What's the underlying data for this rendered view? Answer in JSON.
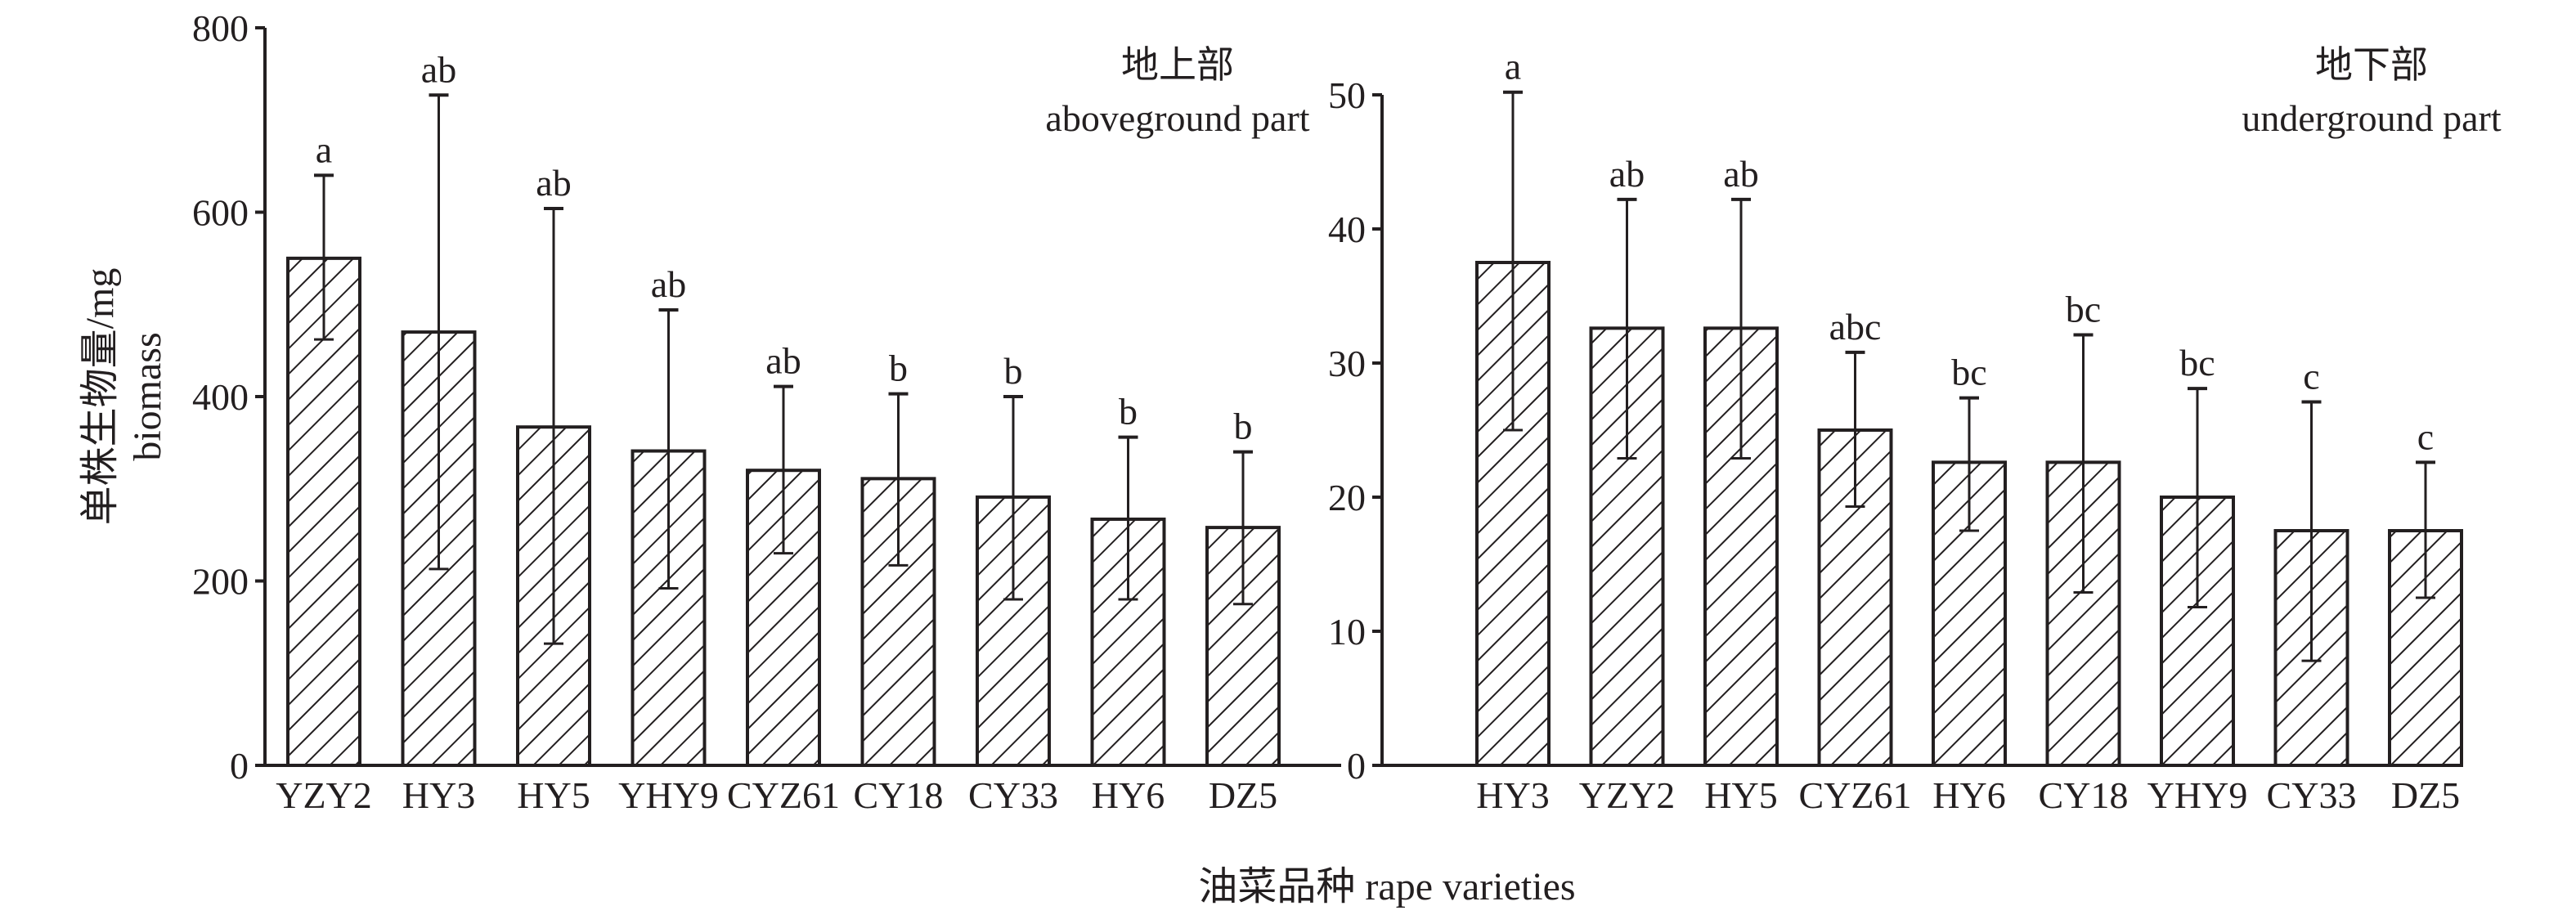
{
  "chart_data": [
    {
      "type": "bar",
      "panel_title_cn": "地上部",
      "panel_title_en": "aboveground part",
      "categories": [
        "YZY2",
        "HY3",
        "HY5",
        "YHY9",
        "CYZ61",
        "CY18",
        "CY33",
        "HY6",
        "DZ5"
      ],
      "values": [
        550,
        470,
        367,
        341,
        320,
        311,
        291,
        267,
        258
      ],
      "error_low": [
        462,
        213,
        132,
        192,
        230,
        217,
        180,
        180,
        175
      ],
      "error_high": [
        640,
        727,
        604,
        494,
        411,
        403,
        400,
        356,
        340
      ],
      "significance": [
        "a",
        "ab",
        "ab",
        "ab",
        "ab",
        "b",
        "b",
        "b",
        "b"
      ],
      "ylim": [
        0,
        800
      ],
      "yticks": [
        "0",
        "200",
        "400",
        "600",
        "800"
      ],
      "ytick_values": [
        0,
        200,
        400,
        600,
        800
      ]
    },
    {
      "type": "bar",
      "panel_title_cn": "地下部",
      "panel_title_en": "underground part",
      "categories": [
        "HY3",
        "YZY2",
        "HY5",
        "CYZ61",
        "HY6",
        "CY18",
        "YHY9",
        "CY33",
        "DZ5"
      ],
      "values": [
        37.5,
        32.6,
        32.6,
        25.0,
        22.6,
        22.6,
        20.0,
        17.5,
        17.5
      ],
      "error_low": [
        25.0,
        22.9,
        22.9,
        19.3,
        17.5,
        12.9,
        11.8,
        7.8,
        12.5
      ],
      "error_high": [
        50.2,
        42.2,
        42.2,
        30.8,
        27.4,
        32.1,
        28.1,
        27.1,
        22.6
      ],
      "significance": [
        "a",
        "ab",
        "ab",
        "abc",
        "bc",
        "bc",
        "bc",
        "c",
        "c"
      ],
      "ylim": [
        0,
        50
      ],
      "yticks": [
        "0",
        "10",
        "20",
        "30",
        "40",
        "50"
      ],
      "ytick_values": [
        0,
        10,
        20,
        30,
        40,
        50
      ]
    }
  ],
  "ylabel_cn": "单株生物量/mg",
  "ylabel_en": "biomass",
  "xlabel": "油菜品种 rape varieties",
  "colors": {
    "ink": "#231f20",
    "fill": "#ffffff"
  }
}
